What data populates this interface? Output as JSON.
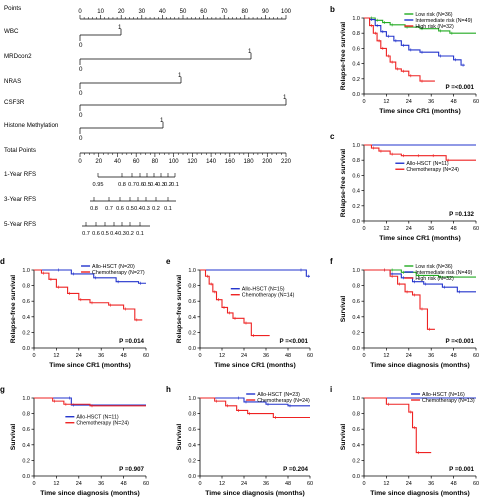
{
  "nomogram": {
    "labels": {
      "points": "Points",
      "wbc": "WBC",
      "mrd": "MRDcon2",
      "nras": "NRAS",
      "csf3r": "CSF3R",
      "histone": "Histone Methylation",
      "total": "Total Points",
      "rfs1": "1-Year RFS",
      "rfs3": "3-Year RFS",
      "rfs5": "5-Year RFS"
    },
    "points_ticks": [
      "0",
      "10",
      "20",
      "30",
      "40",
      "50",
      "60",
      "70",
      "80",
      "90",
      "100"
    ],
    "total_ticks": [
      "0",
      "20",
      "40",
      "60",
      "80",
      "100",
      "120",
      "140",
      "160",
      "180",
      "200",
      "220"
    ],
    "var_zero": "0",
    "var_one": "1",
    "rfs1_ticks": [
      "0.95",
      "0.8",
      "0.7",
      "0.6",
      "0.5",
      "0.4",
      "0.3",
      "0.2",
      "0.1"
    ],
    "rfs3_ticks": [
      "0.8",
      "0.7",
      "0.6",
      "0.5",
      "0.4",
      "0.3",
      "0.2",
      "0.1"
    ],
    "rfs5_ticks": [
      "0.7",
      "0.6",
      "0.5",
      "0.4",
      "0.3",
      "0.2",
      "0.1"
    ]
  },
  "chart_data": [
    {
      "id": "b",
      "type": "line",
      "panel_letter": "b",
      "xlabel": "Time since CR1 (months)",
      "ylabel": "Relapse-free survival",
      "xlim": [
        0,
        60
      ],
      "ylim": [
        0,
        1.0
      ],
      "x_ticks": [
        "0",
        "12",
        "24",
        "36",
        "48",
        "60"
      ],
      "y_ticks": [
        "0.0",
        "0.2",
        "0.4",
        "0.6",
        "0.8",
        "1.0"
      ],
      "legend": "top-right",
      "pvalue": "P =<0.001",
      "series": [
        {
          "name": "Low risk (N=36)",
          "color": "#22aa22",
          "points": [
            [
              0,
              1
            ],
            [
              3,
              1
            ],
            [
              6,
              0.97
            ],
            [
              10,
              0.94
            ],
            [
              14,
              0.91
            ],
            [
              22,
              0.88
            ],
            [
              30,
              0.86
            ],
            [
              40,
              0.83
            ],
            [
              46,
              0.8
            ],
            [
              60,
              0.8
            ]
          ]
        },
        {
          "name": "Intermediate risk (N=49)",
          "color": "#2233cc",
          "points": [
            [
              0,
              1
            ],
            [
              3,
              0.98
            ],
            [
              6,
              0.9
            ],
            [
              9,
              0.82
            ],
            [
              12,
              0.76
            ],
            [
              16,
              0.7
            ],
            [
              20,
              0.64
            ],
            [
              24,
              0.58
            ],
            [
              30,
              0.55
            ],
            [
              40,
              0.5
            ],
            [
              48,
              0.45
            ],
            [
              52,
              0.38
            ],
            [
              54,
              0.38
            ]
          ]
        },
        {
          "name": "High risk (N=32)",
          "color": "#ee2222",
          "points": [
            [
              0,
              1
            ],
            [
              3,
              0.9
            ],
            [
              5,
              0.8
            ],
            [
              7,
              0.7
            ],
            [
              9,
              0.6
            ],
            [
              12,
              0.5
            ],
            [
              14,
              0.42
            ],
            [
              17,
              0.33
            ],
            [
              20,
              0.3
            ],
            [
              24,
              0.24
            ],
            [
              30,
              0.17
            ],
            [
              38,
              0.17
            ]
          ]
        }
      ]
    },
    {
      "id": "c",
      "type": "line",
      "panel_letter": "c",
      "xlabel": "Time since CR1 (months)",
      "ylabel": "Relapse-free survival",
      "xlim": [
        0,
        60
      ],
      "ylim": [
        0,
        1.0
      ],
      "x_ticks": [
        "0",
        "12",
        "24",
        "36",
        "48",
        "60"
      ],
      "y_ticks": [
        "0.0",
        "0.2",
        "0.4",
        "0.6",
        "0.8",
        "1.0"
      ],
      "legend": "center-right",
      "pvalue": "P =0.132",
      "series": [
        {
          "name": "Allo-HSCT (N=11)",
          "color": "#2233cc",
          "points": [
            [
              0,
              1
            ],
            [
              60,
              1
            ]
          ]
        },
        {
          "name": "Chemotherapy (N=24)",
          "color": "#ee2222",
          "points": [
            [
              0,
              1
            ],
            [
              4,
              0.96
            ],
            [
              8,
              0.92
            ],
            [
              14,
              0.88
            ],
            [
              20,
              0.86
            ],
            [
              28,
              0.86
            ],
            [
              36,
              0.86
            ],
            [
              44,
              0.8
            ],
            [
              60,
              0.8
            ]
          ]
        }
      ]
    },
    {
      "id": "d",
      "type": "line",
      "panel_letter": "d",
      "xlabel": "Time since CR1 (months)",
      "ylabel": "Relapse-free survival",
      "xlim": [
        0,
        60
      ],
      "ylim": [
        0,
        1.0
      ],
      "x_ticks": [
        "0",
        "12",
        "24",
        "36",
        "48",
        "60"
      ],
      "y_ticks": [
        "0.0",
        "0.2",
        "0.4",
        "0.6",
        "0.8",
        "1.0"
      ],
      "legend": "top-right",
      "pvalue": "P =0.014",
      "series": [
        {
          "name": "Allo-HSCT (N=20)",
          "color": "#2233cc",
          "points": [
            [
              0,
              1
            ],
            [
              12,
              1
            ],
            [
              20,
              0.95
            ],
            [
              32,
              0.9
            ],
            [
              44,
              0.85
            ],
            [
              56,
              0.83
            ],
            [
              60,
              0.83
            ]
          ]
        },
        {
          "name": "Chemotherapy (N=27)",
          "color": "#ee2222",
          "points": [
            [
              0,
              1
            ],
            [
              4,
              0.96
            ],
            [
              8,
              0.88
            ],
            [
              12,
              0.78
            ],
            [
              18,
              0.7
            ],
            [
              24,
              0.62
            ],
            [
              30,
              0.58
            ],
            [
              40,
              0.55
            ],
            [
              48,
              0.5
            ],
            [
              54,
              0.36
            ],
            [
              58,
              0.36
            ]
          ]
        }
      ]
    },
    {
      "id": "e",
      "type": "line",
      "panel_letter": "e",
      "xlabel": "Time since CR1 (months)",
      "ylabel": "Relapse-free survival",
      "xlim": [
        0,
        60
      ],
      "ylim": [
        0,
        1.0
      ],
      "x_ticks": [
        "0",
        "12",
        "24",
        "36",
        "48",
        "60"
      ],
      "y_ticks": [
        "0.0",
        "0.2",
        "0.4",
        "0.6",
        "0.8",
        "1.0"
      ],
      "legend": "center-right",
      "pvalue": "P =<0.001",
      "series": [
        {
          "name": "Allo-HSCT (N=15)",
          "color": "#2233cc",
          "points": [
            [
              0,
              1
            ],
            [
              54,
              1
            ],
            [
              58,
              0.92
            ],
            [
              60,
              0.92
            ]
          ]
        },
        {
          "name": "Chemotherapy (N=14)",
          "color": "#ee2222",
          "points": [
            [
              0,
              1
            ],
            [
              3,
              0.92
            ],
            [
              5,
              0.82
            ],
            [
              7,
              0.72
            ],
            [
              9,
              0.62
            ],
            [
              12,
              0.52
            ],
            [
              15,
              0.45
            ],
            [
              18,
              0.38
            ],
            [
              24,
              0.32
            ],
            [
              28,
              0.16
            ],
            [
              38,
              0.16
            ]
          ]
        }
      ]
    },
    {
      "id": "f",
      "type": "line",
      "panel_letter": "f",
      "xlabel": "Time since diagnosis (months)",
      "ylabel": "Survival",
      "xlim": [
        0,
        60
      ],
      "ylim": [
        0,
        1.0
      ],
      "x_ticks": [
        "0",
        "12",
        "24",
        "36",
        "48",
        "60"
      ],
      "y_ticks": [
        "0.0",
        "0.2",
        "0.4",
        "0.6",
        "0.8",
        "1.0"
      ],
      "legend": "top-right",
      "pvalue": "P =<0.001",
      "series": [
        {
          "name": "Low risk (N=36)",
          "color": "#22aa22",
          "points": [
            [
              0,
              1
            ],
            [
              14,
              1
            ],
            [
              20,
              0.97
            ],
            [
              28,
              0.93
            ],
            [
              40,
              0.91
            ],
            [
              60,
              0.91
            ]
          ]
        },
        {
          "name": "Intermediate risk (N=49)",
          "color": "#2233cc",
          "points": [
            [
              0,
              1
            ],
            [
              10,
              1
            ],
            [
              14,
              0.95
            ],
            [
              20,
              0.9
            ],
            [
              26,
              0.85
            ],
            [
              32,
              0.82
            ],
            [
              42,
              0.78
            ],
            [
              50,
              0.72
            ],
            [
              60,
              0.72
            ]
          ]
        },
        {
          "name": "High risk (N=32)",
          "color": "#ee2222",
          "points": [
            [
              0,
              1
            ],
            [
              10,
              1
            ],
            [
              14,
              0.92
            ],
            [
              18,
              0.82
            ],
            [
              22,
              0.72
            ],
            [
              26,
              0.68
            ],
            [
              30,
              0.5
            ],
            [
              34,
              0.24
            ],
            [
              38,
              0.24
            ]
          ]
        }
      ]
    },
    {
      "id": "g",
      "type": "line",
      "panel_letter": "g",
      "xlabel": "Time since diagnosis (months)",
      "ylabel": "Survival",
      "xlim": [
        0,
        60
      ],
      "ylim": [
        0,
        1.0
      ],
      "x_ticks": [
        "0",
        "12",
        "24",
        "36",
        "48",
        "60"
      ],
      "y_ticks": [
        "0.0",
        "0.2",
        "0.4",
        "0.6",
        "0.8",
        "1.0"
      ],
      "legend": "center-right",
      "pvalue": "P =0.907",
      "series": [
        {
          "name": "Allo-HSCT (N=11)",
          "color": "#2233cc",
          "points": [
            [
              0,
              1
            ],
            [
              18,
              1
            ],
            [
              20,
              0.91
            ],
            [
              60,
              0.91
            ]
          ]
        },
        {
          "name": "Chemotherapy (N=24)",
          "color": "#ee2222",
          "points": [
            [
              0,
              1
            ],
            [
              10,
              0.96
            ],
            [
              16,
              0.92
            ],
            [
              30,
              0.9
            ],
            [
              60,
              0.9
            ]
          ]
        }
      ]
    },
    {
      "id": "h",
      "type": "line",
      "panel_letter": "h",
      "xlabel": "Time since diagnosis (months)",
      "ylabel": "Survival",
      "xlim": [
        0,
        60
      ],
      "ylim": [
        0,
        1.0
      ],
      "x_ticks": [
        "0",
        "12",
        "24",
        "36",
        "48",
        "60"
      ],
      "y_ticks": [
        "0.0",
        "0.2",
        "0.4",
        "0.6",
        "0.8",
        "1.0"
      ],
      "legend": "top-right",
      "pvalue": "P =0.204",
      "series": [
        {
          "name": "Allo-HSCT (N=23)",
          "color": "#2233cc",
          "points": [
            [
              0,
              1
            ],
            [
              20,
              1
            ],
            [
              24,
              0.95
            ],
            [
              36,
              0.92
            ],
            [
              48,
              0.9
            ],
            [
              60,
              0.9
            ]
          ]
        },
        {
          "name": "Chemotherapy (N=24)",
          "color": "#ee2222",
          "points": [
            [
              0,
              1
            ],
            [
              8,
              0.96
            ],
            [
              14,
              0.9
            ],
            [
              20,
              0.84
            ],
            [
              26,
              0.8
            ],
            [
              40,
              0.75
            ],
            [
              60,
              0.75
            ]
          ]
        }
      ]
    },
    {
      "id": "i",
      "type": "line",
      "panel_letter": "i",
      "xlabel": "Time since diagnosis (months)",
      "ylabel": "Survival",
      "xlim": [
        0,
        60
      ],
      "ylim": [
        0,
        1.0
      ],
      "x_ticks": [
        "0",
        "12",
        "24",
        "36",
        "48",
        "60"
      ],
      "y_ticks": [
        "0.0",
        "0.2",
        "0.4",
        "0.6",
        "0.8",
        "1.0"
      ],
      "legend": "top-right",
      "pvalue": "P =0.001",
      "series": [
        {
          "name": "Allo-HSCT (N=16)",
          "color": "#2233cc",
          "points": [
            [
              0,
              1
            ],
            [
              60,
              1
            ]
          ]
        },
        {
          "name": "Chemotherapy (N=13)",
          "color": "#ee2222",
          "points": [
            [
              0,
              1
            ],
            [
              12,
              0.92
            ],
            [
              24,
              0.82
            ],
            [
              26,
              0.62
            ],
            [
              28,
              0.3
            ],
            [
              36,
              0.3
            ]
          ]
        }
      ]
    }
  ]
}
